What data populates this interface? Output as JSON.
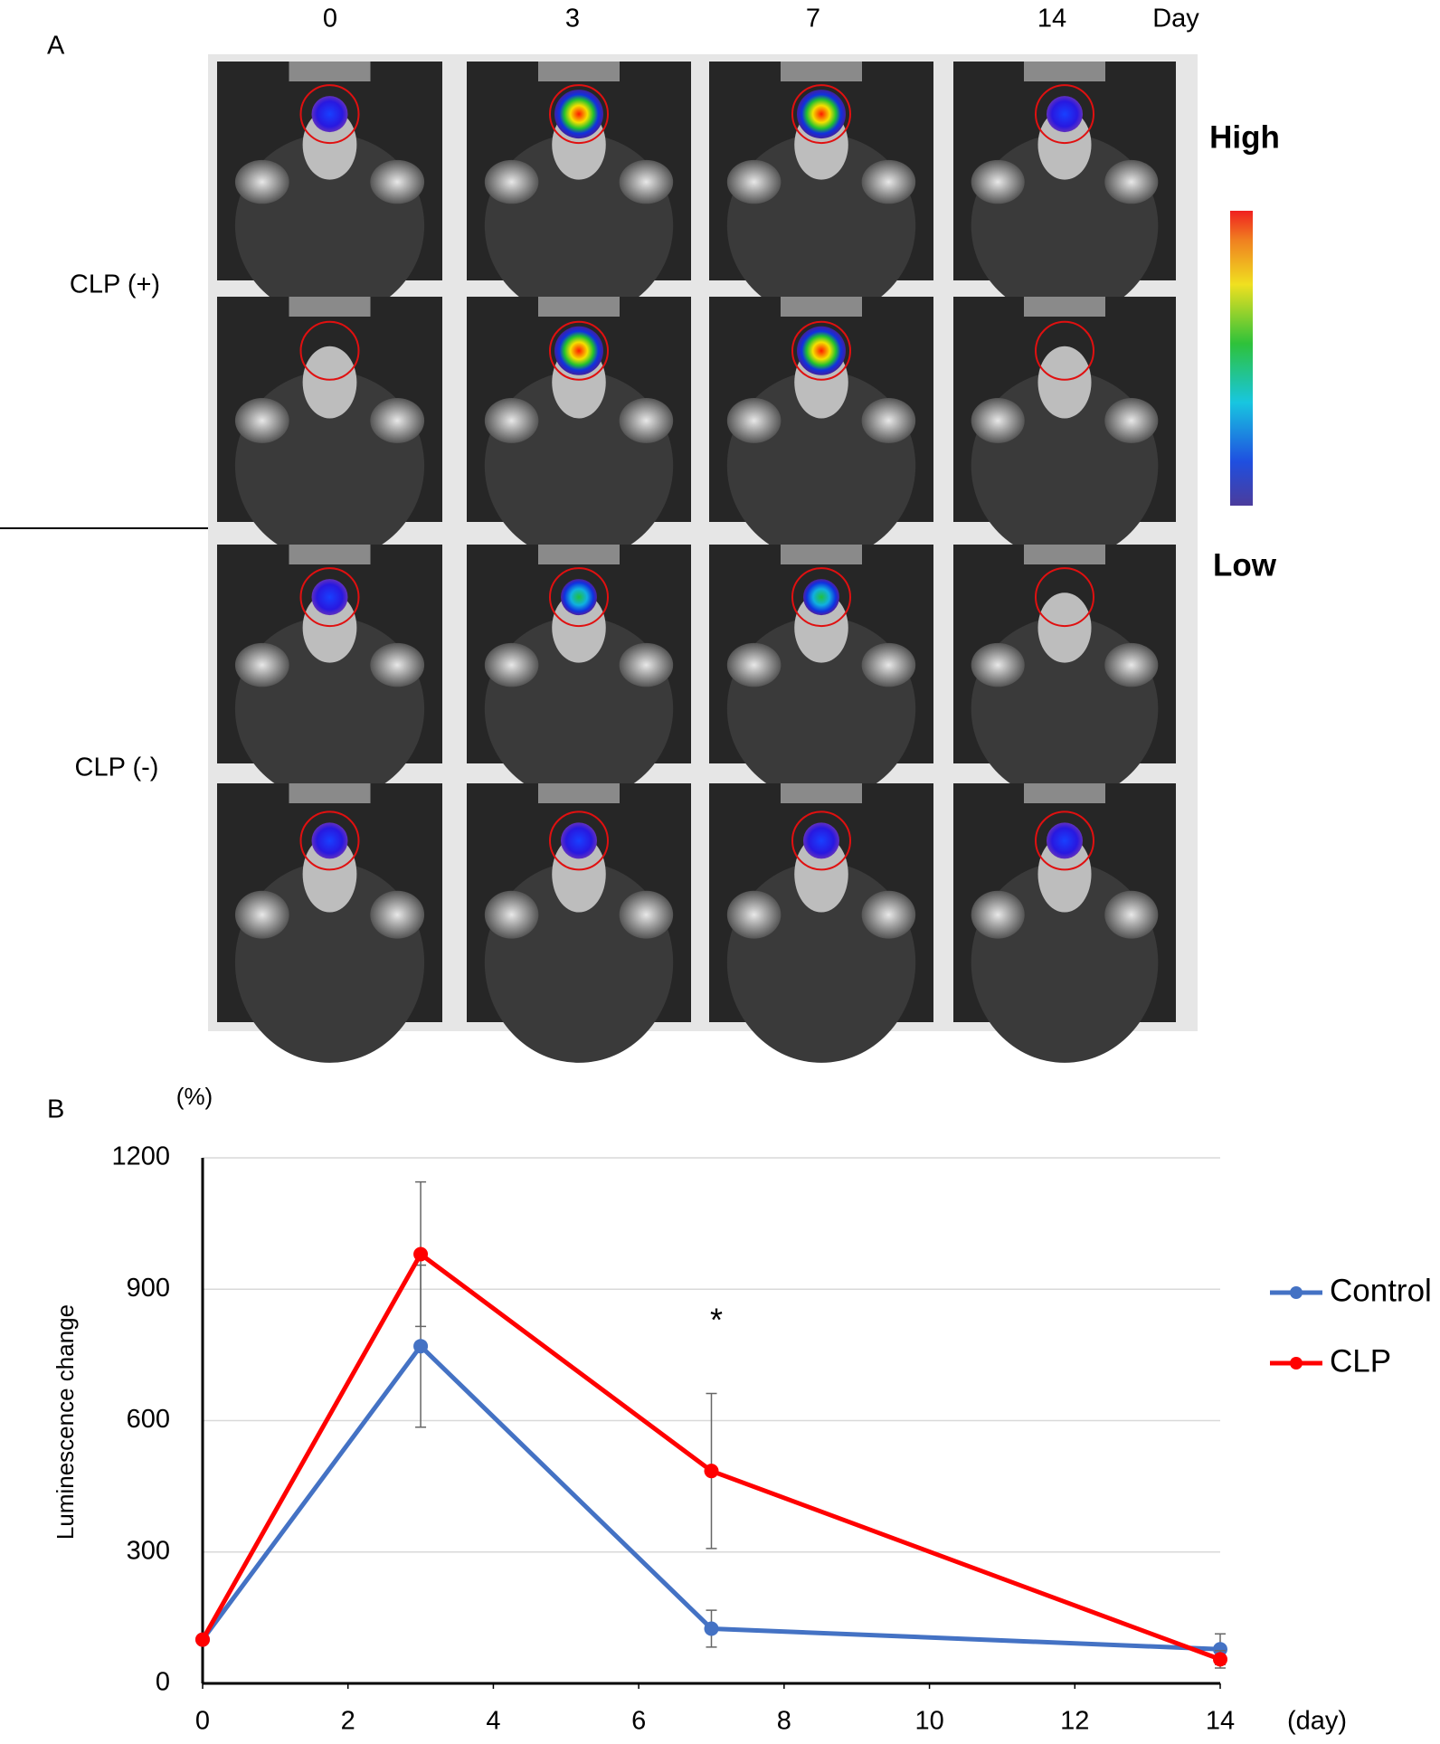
{
  "panel_a": {
    "label": "A",
    "days": [
      "0",
      "3",
      "7",
      "14"
    ],
    "day_unit": "Day",
    "groups": [
      "CLP (+)",
      "CLP (-)"
    ],
    "scale_high": "High",
    "scale_low": "Low"
  },
  "chart_data": {
    "type": "line",
    "panel_label": "B",
    "y_unit": "(%)",
    "x_unit": "(day)",
    "ylabel": "Luminescence change",
    "x": [
      0,
      3,
      7,
      14
    ],
    "series": [
      {
        "name": "Control",
        "color": "#4472c4",
        "values": [
          100,
          770,
          125,
          78
        ],
        "errors": [
          null,
          185,
          42,
          35
        ]
      },
      {
        "name": "CLP",
        "color": "#ff0000",
        "values": [
          100,
          980,
          485,
          55
        ],
        "errors": [
          null,
          165,
          177,
          20
        ]
      }
    ],
    "xlim": [
      0,
      14
    ],
    "xticks": [
      0,
      2,
      4,
      6,
      8,
      10,
      12,
      14
    ],
    "ylim": [
      0,
      1200
    ],
    "yticks": [
      0,
      300,
      600,
      900,
      1200
    ],
    "grid": true,
    "annotation": "*",
    "legend": "right"
  }
}
